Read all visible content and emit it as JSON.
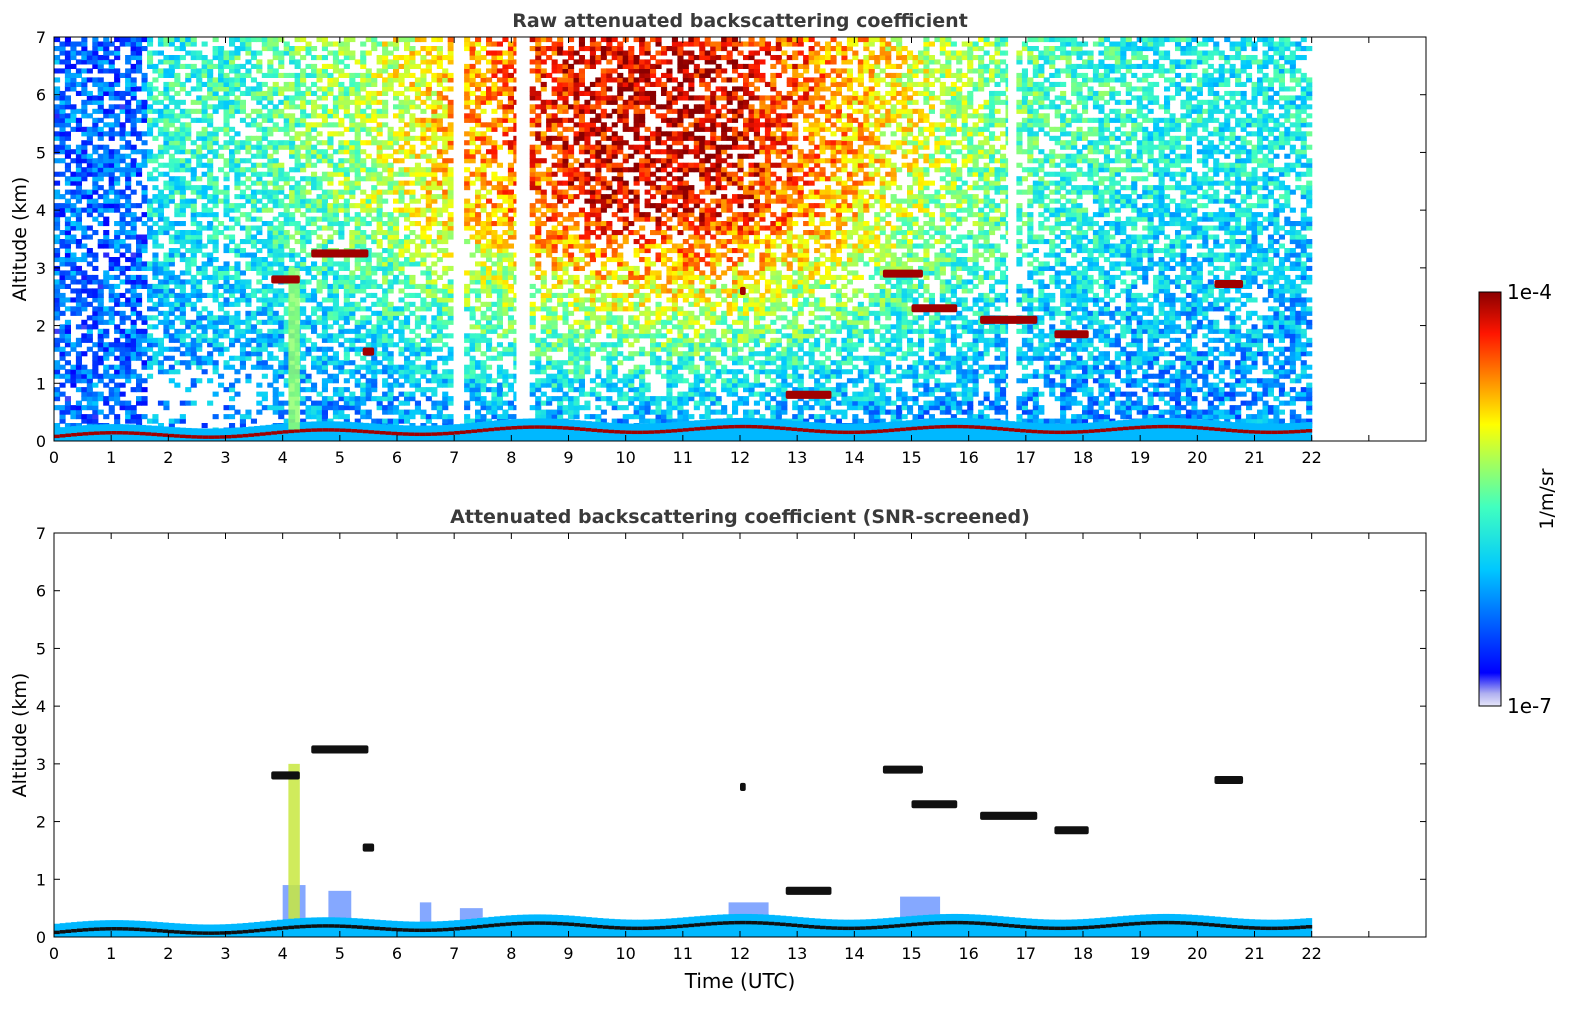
{
  "chart_data": [
    {
      "type": "heatmap",
      "title": "Raw attenuated backscattering coefficient",
      "xlabel": "",
      "ylabel": "Altitude (km)",
      "xlim": [
        0,
        24
      ],
      "ylim": [
        0,
        7
      ],
      "data_extent_x": [
        0,
        22
      ],
      "xticks": [
        "0",
        "1",
        "2",
        "3",
        "4",
        "5",
        "6",
        "7",
        "8",
        "9",
        "10",
        "11",
        "12",
        "13",
        "14",
        "15",
        "16",
        "17",
        "18",
        "19",
        "20",
        "21",
        "22"
      ],
      "yticks": [
        "0",
        "1",
        "2",
        "3",
        "4",
        "5",
        "6",
        "7"
      ],
      "grid": false,
      "scale": "log",
      "features": {
        "surface_layer": {
          "altitude_km": [
            0.05,
            0.35
          ]
        },
        "dropout_gaps_utc": [
          7.05,
          8.15,
          16.75
        ],
        "cloud_layers": [
          {
            "time_utc": [
              3.8,
              4.3
            ],
            "altitude_km": 2.8
          },
          {
            "time_utc": [
              4.5,
              5.5
            ],
            "altitude_km": 3.25
          },
          {
            "time_utc": [
              5.4,
              5.6
            ],
            "altitude_km": 1.55
          },
          {
            "time_utc": [
              12.0,
              12.1
            ],
            "altitude_km": 2.6
          },
          {
            "time_utc": [
              12.8,
              13.6
            ],
            "altitude_km": 0.8
          },
          {
            "time_utc": [
              14.5,
              15.2
            ],
            "altitude_km": 2.9
          },
          {
            "time_utc": [
              15.0,
              15.8
            ],
            "altitude_km": 2.3
          },
          {
            "time_utc": [
              16.2,
              17.2
            ],
            "altitude_km": 2.1
          },
          {
            "time_utc": [
              17.5,
              18.1
            ],
            "altitude_km": 1.85
          },
          {
            "time_utc": [
              20.3,
              20.8
            ],
            "altitude_km": 2.72
          }
        ]
      }
    },
    {
      "type": "heatmap",
      "title": "Attenuated backscattering coefficient (SNR-screened)",
      "xlabel": "Time (UTC)",
      "ylabel": "Altitude (km)",
      "xlim": [
        0,
        24
      ],
      "ylim": [
        0,
        7
      ],
      "data_extent_x": [
        0,
        22
      ],
      "xticks": [
        "0",
        "1",
        "2",
        "3",
        "4",
        "5",
        "6",
        "7",
        "8",
        "9",
        "10",
        "11",
        "12",
        "13",
        "14",
        "15",
        "16",
        "17",
        "18",
        "19",
        "20",
        "21",
        "22"
      ],
      "yticks": [
        "0",
        "1",
        "2",
        "3",
        "4",
        "5",
        "6",
        "7"
      ],
      "grid": false,
      "scale": "log"
    }
  ],
  "colorbar": {
    "label": "1/m/sr",
    "min_label": "1e-7",
    "max_label": "1e-4",
    "colormap": "jet",
    "colors": [
      "#e6e6fa",
      "#0000ff",
      "#00c8ff",
      "#7fff7f",
      "#ffff00",
      "#ff6000",
      "#8b0000"
    ]
  }
}
